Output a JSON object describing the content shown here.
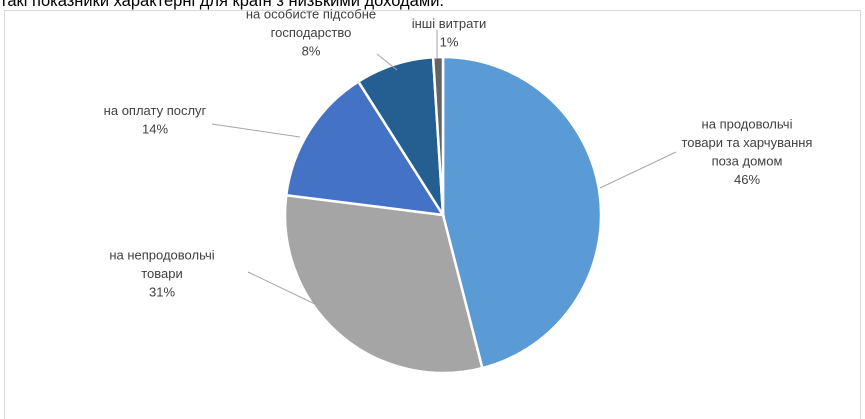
{
  "page": {
    "header_text": "такі показники характерні для країн з низькими доходами."
  },
  "chart_data": {
    "type": "pie",
    "title": "",
    "slices": [
      {
        "label_lines": [
          "на продовольчі",
          "товари та харчування",
          "поза домом"
        ],
        "value_label": "46%",
        "value": 46,
        "color": "#5b9bd5"
      },
      {
        "label_lines": [
          "на непродовольчі",
          "товари"
        ],
        "value_label": "31%",
        "value": 31,
        "color": "#a5a5a5"
      },
      {
        "label_lines": [
          "на оплату послуг"
        ],
        "value_label": "14%",
        "value": 14,
        "color": "#4472c4"
      },
      {
        "label_lines": [
          "на особисте підсобне",
          "господарство"
        ],
        "value_label": "8%",
        "value": 8,
        "color": "#255e91"
      },
      {
        "label_lines": [
          "інші витрати"
        ],
        "value_label": "1%",
        "value": 1,
        "color": "#636363"
      }
    ]
  }
}
